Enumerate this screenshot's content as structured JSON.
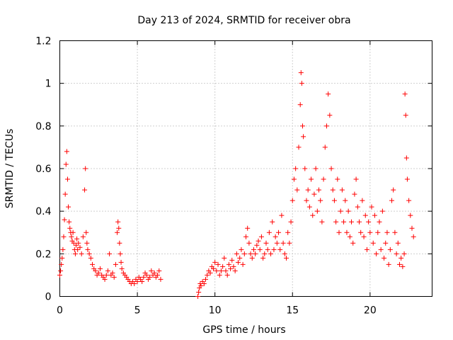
{
  "chart_data": {
    "type": "scatter",
    "title": "Day 213 of 2024, SRMTID for receiver obra",
    "xlabel": "GPS time / hours",
    "ylabel": "SRMTID / TECUs",
    "xlim": [
      0,
      24
    ],
    "ylim": [
      0,
      1.2
    ],
    "x_ticks": [
      0,
      5,
      10,
      15,
      20
    ],
    "x_tick_labels": [
      "0",
      "5",
      "10",
      "15",
      "20"
    ],
    "y_ticks": [
      0,
      0.2,
      0.4,
      0.6,
      0.8,
      1.0,
      1.2
    ],
    "y_tick_labels": [
      "0",
      "0.2",
      "0.4",
      "0.6",
      "0.8",
      "1",
      "1.2"
    ],
    "grid": true,
    "marker": "+",
    "color": "#ff0000",
    "series": [
      {
        "name": "SRMTID",
        "x": [
          0.0,
          0.05,
          0.1,
          0.15,
          0.2,
          0.25,
          0.3,
          0.35,
          0.4,
          0.45,
          0.5,
          0.55,
          0.6,
          0.65,
          0.7,
          0.75,
          0.8,
          0.85,
          0.9,
          0.95,
          1.0,
          1.05,
          1.1,
          1.15,
          1.2,
          1.3,
          1.4,
          1.5,
          1.6,
          1.65,
          1.7,
          1.75,
          1.8,
          1.9,
          2.0,
          2.1,
          2.2,
          2.3,
          2.4,
          2.5,
          2.6,
          2.7,
          2.8,
          2.9,
          3.0,
          3.1,
          3.2,
          3.3,
          3.4,
          3.5,
          3.6,
          3.7,
          3.75,
          3.8,
          3.85,
          3.9,
          3.95,
          4.0,
          4.1,
          4.2,
          4.3,
          4.4,
          4.5,
          4.6,
          4.7,
          4.8,
          4.9,
          5.0,
          5.1,
          5.2,
          5.3,
          5.4,
          5.5,
          5.6,
          5.7,
          5.8,
          5.9,
          6.0,
          6.1,
          6.2,
          6.3,
          6.4,
          6.5,
          8.9,
          8.95,
          9.0,
          9.05,
          9.1,
          9.2,
          9.3,
          9.4,
          9.5,
          9.6,
          9.7,
          9.8,
          9.9,
          10.0,
          10.1,
          10.2,
          10.3,
          10.4,
          10.5,
          10.6,
          10.7,
          10.8,
          10.9,
          11.0,
          11.1,
          11.2,
          11.3,
          11.4,
          11.5,
          11.6,
          11.7,
          11.8,
          11.9,
          12.0,
          12.1,
          12.2,
          12.3,
          12.4,
          12.5,
          12.6,
          12.7,
          12.8,
          12.9,
          13.0,
          13.1,
          13.2,
          13.3,
          13.4,
          13.5,
          13.6,
          13.7,
          13.8,
          13.9,
          14.0,
          14.1,
          14.2,
          14.3,
          14.4,
          14.5,
          14.6,
          14.7,
          14.8,
          14.9,
          15.0,
          15.1,
          15.2,
          15.3,
          15.4,
          15.5,
          15.55,
          15.6,
          15.65,
          15.7,
          15.8,
          15.9,
          16.0,
          16.1,
          16.2,
          16.3,
          16.4,
          16.5,
          16.6,
          16.7,
          16.8,
          16.9,
          17.0,
          17.1,
          17.2,
          17.3,
          17.4,
          17.5,
          17.6,
          17.7,
          17.8,
          17.9,
          18.0,
          18.1,
          18.2,
          18.3,
          18.4,
          18.5,
          18.6,
          18.7,
          18.8,
          18.9,
          19.0,
          19.1,
          19.2,
          19.3,
          19.4,
          19.5,
          19.6,
          19.7,
          19.8,
          19.9,
          20.0,
          20.1,
          20.2,
          20.3,
          20.4,
          20.5,
          20.6,
          20.7,
          20.8,
          20.9,
          21.0,
          21.1,
          21.2,
          21.3,
          21.4,
          21.5,
          21.6,
          21.7,
          21.8,
          21.9,
          22.0,
          22.1,
          22.2,
          22.25,
          22.3,
          22.35,
          22.4,
          22.5,
          22.6,
          22.7,
          22.8
        ],
        "y": [
          0.1,
          0.12,
          0.15,
          0.18,
          0.22,
          0.28,
          0.36,
          0.48,
          0.62,
          0.68,
          0.55,
          0.42,
          0.35,
          0.32,
          0.3,
          0.28,
          0.26,
          0.3,
          0.25,
          0.22,
          0.2,
          0.24,
          0.27,
          0.22,
          0.25,
          0.23,
          0.2,
          0.28,
          0.5,
          0.6,
          0.3,
          0.25,
          0.22,
          0.2,
          0.18,
          0.15,
          0.13,
          0.12,
          0.1,
          0.11,
          0.13,
          0.1,
          0.09,
          0.08,
          0.1,
          0.12,
          0.2,
          0.1,
          0.11,
          0.09,
          0.15,
          0.3,
          0.35,
          0.32,
          0.25,
          0.2,
          0.16,
          0.13,
          0.11,
          0.1,
          0.09,
          0.08,
          0.07,
          0.06,
          0.07,
          0.06,
          0.08,
          0.07,
          0.09,
          0.08,
          0.07,
          0.09,
          0.11,
          0.1,
          0.08,
          0.09,
          0.12,
          0.1,
          0.11,
          0.09,
          0.1,
          0.12,
          0.08,
          0.0,
          0.02,
          0.04,
          0.06,
          0.05,
          0.07,
          0.06,
          0.08,
          0.1,
          0.12,
          0.11,
          0.14,
          0.13,
          0.16,
          0.12,
          0.15,
          0.1,
          0.12,
          0.14,
          0.18,
          0.12,
          0.1,
          0.15,
          0.13,
          0.17,
          0.14,
          0.12,
          0.2,
          0.16,
          0.18,
          0.22,
          0.15,
          0.2,
          0.28,
          0.32,
          0.25,
          0.2,
          0.18,
          0.22,
          0.2,
          0.24,
          0.26,
          0.22,
          0.28,
          0.18,
          0.2,
          0.25,
          0.22,
          0.3,
          0.2,
          0.35,
          0.22,
          0.28,
          0.25,
          0.3,
          0.22,
          0.38,
          0.25,
          0.2,
          0.18,
          0.3,
          0.25,
          0.35,
          0.45,
          0.55,
          0.6,
          0.5,
          0.7,
          0.9,
          1.05,
          1.0,
          0.8,
          0.75,
          0.6,
          0.45,
          0.5,
          0.42,
          0.55,
          0.38,
          0.48,
          0.6,
          0.4,
          0.5,
          0.45,
          0.35,
          0.55,
          0.7,
          0.8,
          0.95,
          0.85,
          0.6,
          0.5,
          0.45,
          0.35,
          0.55,
          0.3,
          0.4,
          0.5,
          0.35,
          0.45,
          0.3,
          0.4,
          0.28,
          0.35,
          0.25,
          0.48,
          0.55,
          0.42,
          0.35,
          0.3,
          0.45,
          0.28,
          0.38,
          0.22,
          0.35,
          0.3,
          0.42,
          0.25,
          0.38,
          0.2,
          0.3,
          0.35,
          0.22,
          0.4,
          0.18,
          0.25,
          0.3,
          0.15,
          0.22,
          0.45,
          0.5,
          0.3,
          0.2,
          0.25,
          0.15,
          0.18,
          0.14,
          0.2,
          0.95,
          0.85,
          0.65,
          0.55,
          0.45,
          0.38,
          0.32,
          0.28
        ]
      }
    ]
  }
}
